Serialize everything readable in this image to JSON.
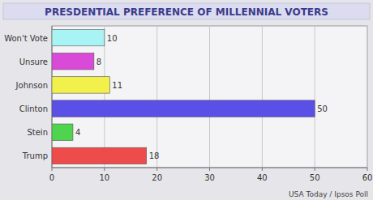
{
  "chart_data": {
    "type": "bar",
    "orientation": "horizontal",
    "title": "PRESDENTIAL PREFERENCE OF MILLENNIAL VOTERS",
    "categories": [
      "Won't Vote",
      "Unsure",
      "Johnson",
      "Clinton",
      "Stein",
      "Trump"
    ],
    "values": [
      10,
      8,
      11,
      50,
      4,
      18
    ],
    "colors": [
      "#a8f4f4",
      "#d94ad9",
      "#f2f04a",
      "#5a4fe6",
      "#4fd44f",
      "#ee4b4b"
    ],
    "xlim": [
      0,
      60
    ],
    "xticks": [
      0,
      10,
      20,
      30,
      40,
      50,
      60
    ],
    "grid": true,
    "data_labels": true,
    "annotations": [
      "USA Today / Ipsos Poll"
    ]
  }
}
